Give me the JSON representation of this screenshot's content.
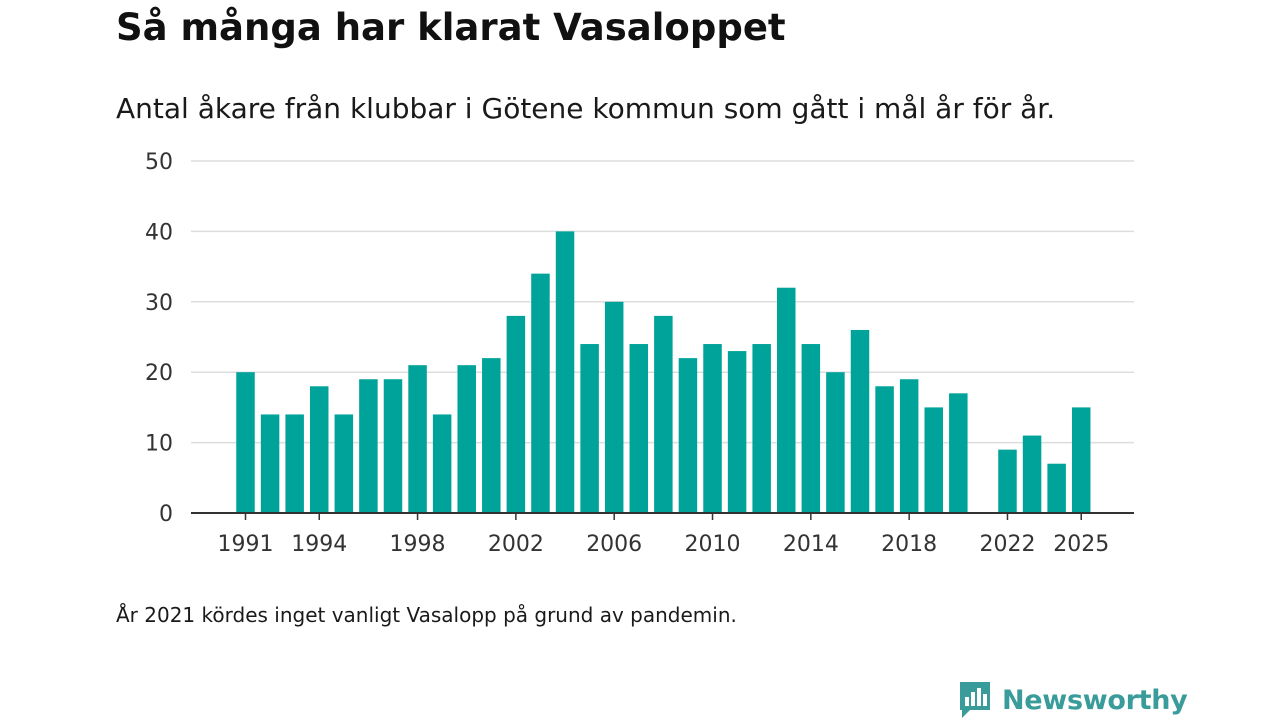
{
  "chart_data": {
    "type": "bar",
    "title": "Så många har klarat Vasaloppet",
    "subtitle": "Antal åkare från klubbar i Götene kommun som gått i mål år för år.",
    "xlabel": "",
    "ylabel": "",
    "ylim": [
      0,
      50
    ],
    "yticks": [
      0,
      10,
      20,
      30,
      40,
      50
    ],
    "xticks": [
      1991,
      1994,
      1998,
      2002,
      2006,
      2010,
      2014,
      2018,
      2022,
      2025
    ],
    "grid": true,
    "bar_color": "#00A39A",
    "categories": [
      1991,
      1992,
      1993,
      1994,
      1995,
      1996,
      1997,
      1998,
      1999,
      2000,
      2001,
      2002,
      2003,
      2004,
      2005,
      2006,
      2007,
      2008,
      2009,
      2010,
      2011,
      2012,
      2013,
      2014,
      2015,
      2016,
      2017,
      2018,
      2019,
      2020,
      2021,
      2022,
      2023,
      2024,
      2025
    ],
    "values": [
      20,
      14,
      14,
      18,
      14,
      19,
      19,
      21,
      14,
      21,
      22,
      28,
      34,
      40,
      24,
      30,
      24,
      28,
      22,
      24,
      23,
      24,
      32,
      24,
      20,
      26,
      18,
      19,
      15,
      17,
      null,
      9,
      11,
      7,
      15
    ]
  },
  "footnote": "År 2021 kördes inget vanligt Vasalopp på grund av pandemin.",
  "brand": {
    "name": "Newsworthy",
    "color": "#3A9C9A",
    "icon": "bar-chart-speech-bubble-icon"
  }
}
